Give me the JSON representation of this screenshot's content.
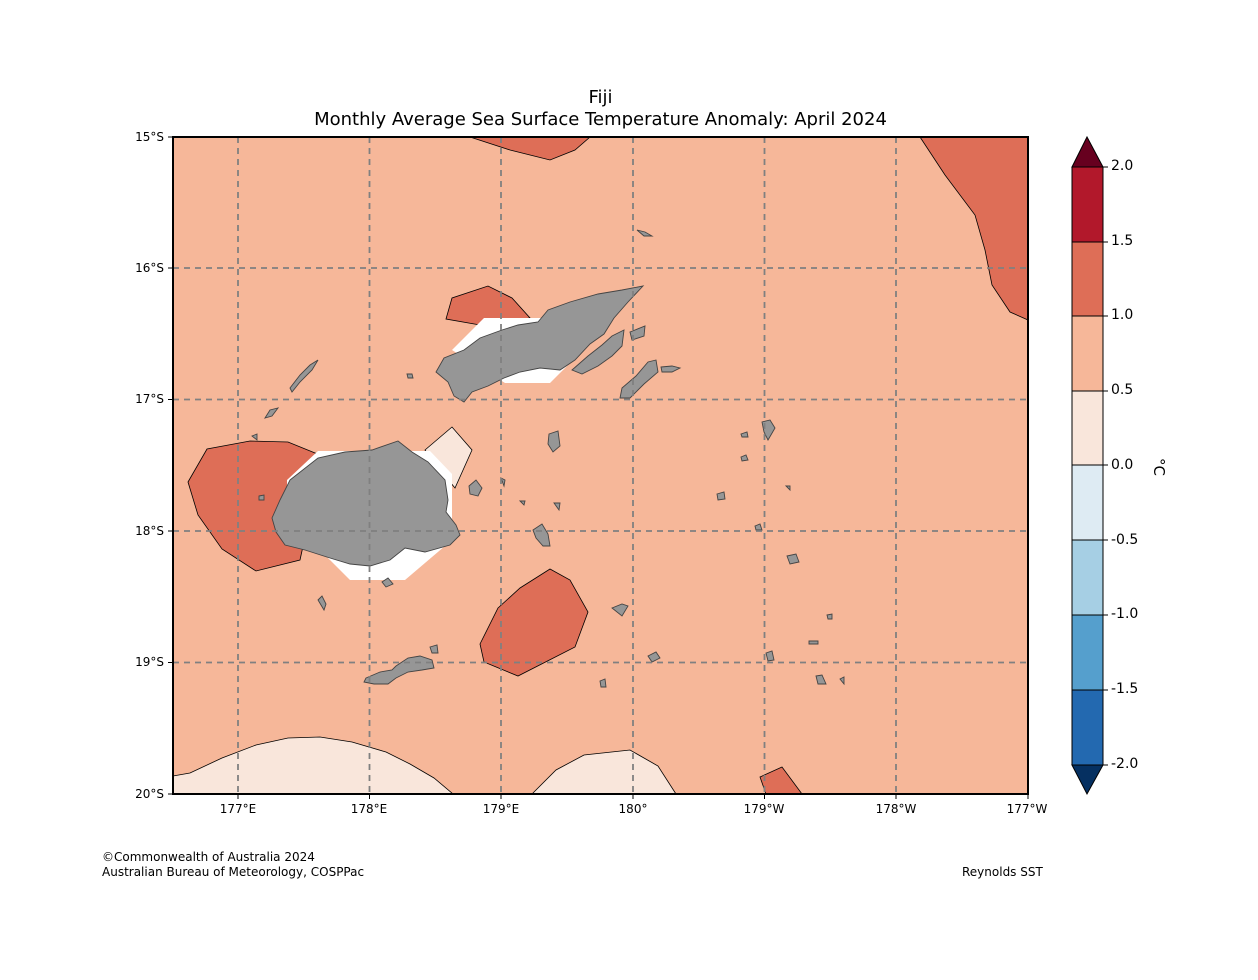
{
  "title": "Fiji",
  "subtitle": "Monthly Average Sea Surface Temperature Anomaly: April 2024",
  "lat_labels": [
    "15°S",
    "16°S",
    "17°S",
    "18°S",
    "19°S",
    "20°S"
  ],
  "lon_labels": [
    "177°E",
    "178°E",
    "179°E",
    "180°",
    "179°W",
    "178°W",
    "177°W"
  ],
  "colorbar": {
    "unit": "°C",
    "ticks": [
      "2.0",
      "1.5",
      "1.0",
      "0.5",
      "0.0",
      "-0.5",
      "-1.0",
      "-1.5",
      "-2.0"
    ],
    "colors": [
      "#b2182b",
      "#de6e57",
      "#f6b799",
      "#f9e6db",
      "#deebf3",
      "#a6cfe4",
      "#559fcd",
      "#2369b0"
    ],
    "extend_high": "#67001f",
    "extend_low": "#053061"
  },
  "colors": {
    "background_anomaly": "#f6b799",
    "land": "#969696",
    "grid": "#808080"
  },
  "footer": {
    "copyright": "©Commonwealth of Australia 2024",
    "agency": "Australian Bureau of Meteorology, COSPPac",
    "source": "Reynolds SST"
  }
}
